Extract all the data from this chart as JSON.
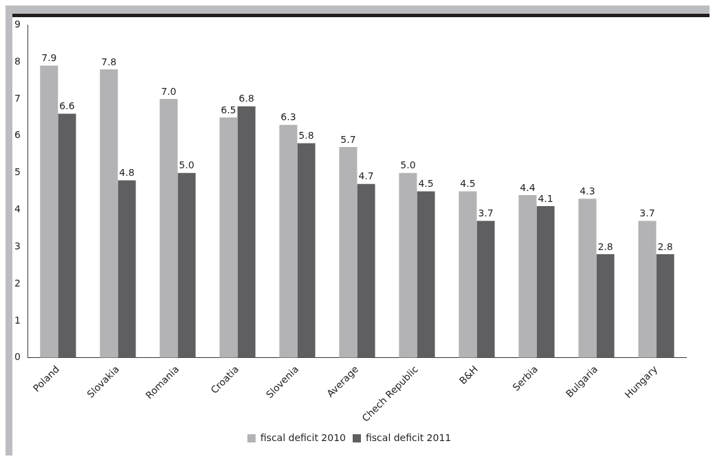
{
  "chart_data": {
    "type": "bar",
    "categories": [
      "Poland",
      "Slovakia",
      "Romania",
      "Croatia",
      "Slovenia",
      "Average",
      "Chech Republic",
      "B&H",
      "Serbia",
      "Bulgaria",
      "Hungary"
    ],
    "series": [
      {
        "name": "fiscal deficit 2010",
        "color": "#b3b3b5",
        "values": [
          7.9,
          7.8,
          7.0,
          6.5,
          6.3,
          5.7,
          5.0,
          4.5,
          4.4,
          4.3,
          3.7
        ],
        "value_labels": [
          "7.9",
          "7.8",
          "7.0",
          "6.5",
          "6.3",
          "5.7",
          "5.0",
          "4.5",
          "4.4",
          "4.3",
          "3.7"
        ]
      },
      {
        "name": "fiscal deficit 2011",
        "color": "#5f5f61",
        "values": [
          6.6,
          4.8,
          5.0,
          6.8,
          5.8,
          4.7,
          4.5,
          3.7,
          4.1,
          2.8,
          2.8
        ],
        "value_labels": [
          "6.6",
          "4.8",
          "5.0",
          "6.8",
          "5.8",
          "4.7",
          "4.5",
          "3.7",
          "4.1",
          "2.8",
          "2.8"
        ]
      }
    ],
    "ylim": [
      0,
      9
    ],
    "yticks": [
      0,
      1,
      2,
      3,
      4,
      5,
      6,
      7,
      8,
      9
    ],
    "grid": false,
    "legend": "bottom"
  }
}
